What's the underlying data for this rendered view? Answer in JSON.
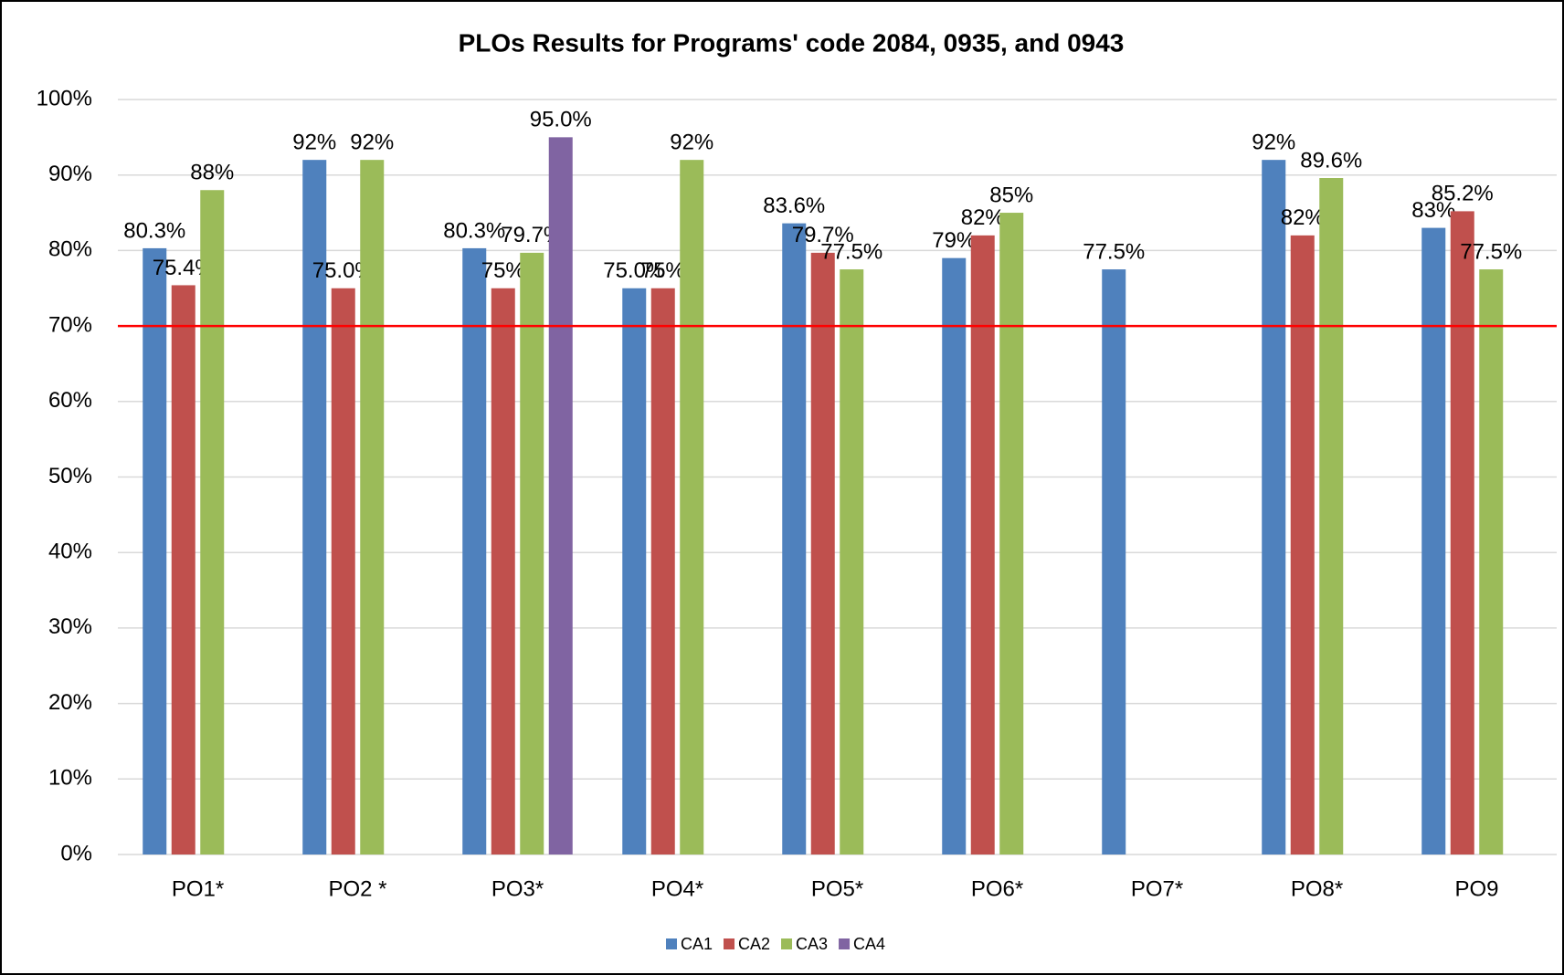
{
  "chart_data": {
    "type": "bar",
    "title": "PLOs Results for Programs' code 2084, 0935, and 0943",
    "categories": [
      "PO1*",
      "PO2 *",
      "PO3*",
      "PO4*",
      "PO5*",
      "PO6*",
      "PO7*",
      "PO8*",
      "PO9"
    ],
    "series": [
      {
        "name": "CA1",
        "color": "#4f81bd",
        "values": [
          80.3,
          92,
          80.3,
          75.0,
          83.6,
          79,
          77.5,
          92,
          83
        ],
        "value_labels": [
          "80.3%",
          "92%",
          "80.3%",
          "75.0%",
          "83.6%",
          "79%",
          "77.5%",
          "92%",
          "83%"
        ]
      },
      {
        "name": "CA2",
        "color": "#c0504d",
        "values": [
          75.4,
          75.0,
          75,
          75,
          79.7,
          82,
          null,
          82,
          85.2
        ],
        "value_labels": [
          "75.4%",
          "75.0%",
          "75%",
          "75%",
          "79.7%",
          "82%",
          null,
          "82%",
          "85.2%"
        ]
      },
      {
        "name": "CA3",
        "color": "#9bbb59",
        "values": [
          88,
          92,
          79.7,
          92,
          77.5,
          85,
          null,
          89.6,
          77.5
        ],
        "value_labels": [
          "88%",
          "92%",
          "79.7%",
          "92%",
          "77.5%",
          "85%",
          null,
          "89.6%",
          "77.5%"
        ]
      },
      {
        "name": "CA4",
        "color": "#8064a2",
        "values": [
          null,
          null,
          95.0,
          null,
          null,
          null,
          null,
          null,
          null
        ],
        "value_labels": [
          null,
          null,
          "95.0%",
          null,
          null,
          null,
          null,
          null,
          null
        ]
      }
    ],
    "threshold": {
      "value": 70,
      "color": "#ff0000"
    },
    "ylim": [
      0,
      100
    ],
    "yticks": [
      {
        "value": 0,
        "label": "0%"
      },
      {
        "value": 10,
        "label": "10%"
      },
      {
        "value": 20,
        "label": "20%"
      },
      {
        "value": 30,
        "label": "30%"
      },
      {
        "value": 40,
        "label": "40%"
      },
      {
        "value": 50,
        "label": "50%"
      },
      {
        "value": 60,
        "label": "60%"
      },
      {
        "value": 70,
        "label": "70%"
      },
      {
        "value": 80,
        "label": "80%"
      },
      {
        "value": 90,
        "label": "90%"
      },
      {
        "value": 100,
        "label": "100%"
      }
    ],
    "grid": true,
    "legend": "bottom"
  }
}
